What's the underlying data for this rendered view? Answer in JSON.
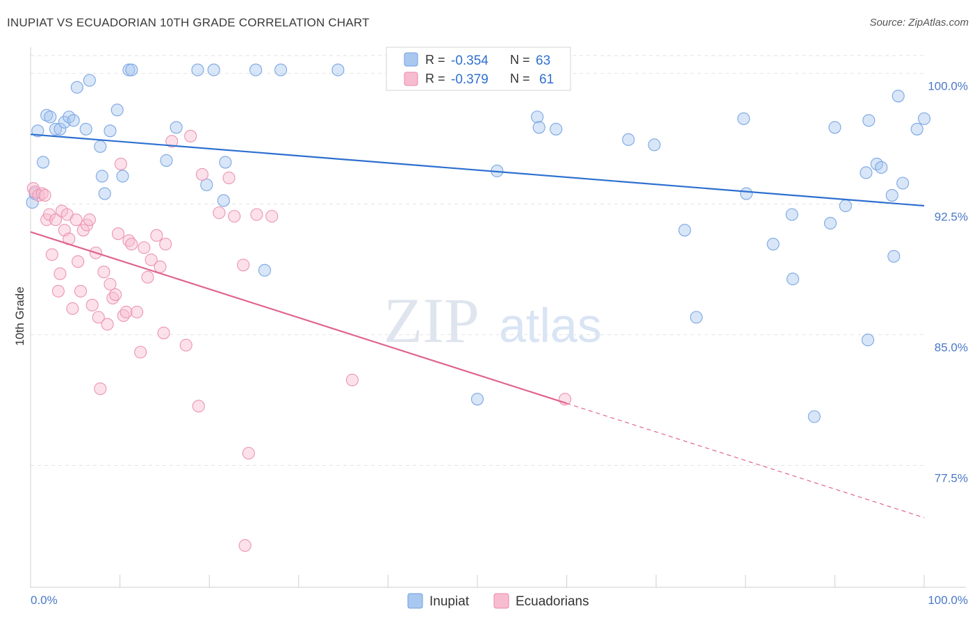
{
  "title": "INUPIAT VS ECUADORIAN 10TH GRADE CORRELATION CHART",
  "source": "Source: ZipAtlas.com",
  "watermark": {
    "part1": "ZIP",
    "part2": "atlas"
  },
  "legend_top": [
    {
      "r_label": "R =",
      "r_value": "-0.354",
      "n_label": "N =",
      "n_value": "63",
      "color": "#a9c8f0",
      "stroke": "#6f9de0"
    },
    {
      "r_label": "R =",
      "r_value": "-0.379",
      "n_label": "N =",
      "n_value": "61",
      "color": "#f8bcd0",
      "stroke": "#e88aa8"
    }
  ],
  "legend_bottom": [
    {
      "label": "Inupiat",
      "color": "#a9c8f0",
      "stroke": "#6f9de0"
    },
    {
      "label": "Ecuadorians",
      "color": "#f8bcd0",
      "stroke": "#e88aa8"
    }
  ],
  "colors": {
    "blue_line": "#2d6fd0",
    "pink_line": "#e0648e",
    "blue_fill": "#a9c8f0",
    "pink_fill": "#f8bcd0",
    "tick_text": "#4a78c8"
  },
  "chart_data": {
    "type": "scatter",
    "ylabel": "10th Grade",
    "xlim": [
      0,
      100
    ],
    "ylim": [
      70.5,
      101.5
    ],
    "x_tick_labels": [
      "0.0%",
      "100.0%"
    ],
    "y_ticks": [
      77.5,
      85.0,
      92.5,
      100.0
    ],
    "y_tick_labels": [
      "77.5%",
      "85.0%",
      "92.5%",
      "100.0%"
    ],
    "grid": true,
    "series": [
      {
        "name": "Inupiat",
        "trend": {
          "x": [
            0,
            100
          ],
          "y": [
            96.5,
            92.4
          ],
          "solid_to": 100
        },
        "points": [
          [
            0.2,
            92.6
          ],
          [
            0.5,
            93.1
          ],
          [
            0.8,
            96.7
          ],
          [
            1.4,
            94.9
          ],
          [
            1.8,
            97.6
          ],
          [
            2.2,
            97.5
          ],
          [
            2.8,
            96.8
          ],
          [
            3.3,
            96.8
          ],
          [
            3.8,
            97.2
          ],
          [
            4.3,
            97.5
          ],
          [
            4.8,
            97.3
          ],
          [
            5.2,
            99.2
          ],
          [
            6.2,
            96.8
          ],
          [
            6.6,
            99.6
          ],
          [
            7.8,
            95.8
          ],
          [
            8.0,
            94.1
          ],
          [
            8.3,
            93.1
          ],
          [
            8.9,
            96.7
          ],
          [
            9.7,
            97.9
          ],
          [
            10.3,
            94.1
          ],
          [
            11.0,
            100.2
          ],
          [
            11.3,
            100.2
          ],
          [
            15.2,
            95.0
          ],
          [
            16.3,
            96.9
          ],
          [
            18.7,
            100.2
          ],
          [
            19.7,
            93.6
          ],
          [
            20.5,
            100.2
          ],
          [
            21.6,
            92.7
          ],
          [
            21.8,
            94.9
          ],
          [
            25.2,
            100.2
          ],
          [
            26.2,
            88.7
          ],
          [
            28.0,
            100.2
          ],
          [
            34.4,
            100.2
          ],
          [
            47.6,
            100.2
          ],
          [
            50.0,
            81.3
          ],
          [
            52.2,
            94.4
          ],
          [
            56.7,
            97.5
          ],
          [
            56.9,
            96.9
          ],
          [
            58.8,
            96.8
          ],
          [
            66.9,
            96.2
          ],
          [
            69.8,
            95.9
          ],
          [
            73.2,
            91.0
          ],
          [
            74.5,
            86.0
          ],
          [
            79.8,
            97.4
          ],
          [
            80.1,
            93.1
          ],
          [
            83.1,
            90.2
          ],
          [
            85.2,
            91.9
          ],
          [
            85.3,
            88.2
          ],
          [
            87.7,
            80.3
          ],
          [
            89.5,
            91.4
          ],
          [
            90.0,
            96.9
          ],
          [
            91.2,
            92.4
          ],
          [
            93.5,
            94.3
          ],
          [
            93.7,
            84.7
          ],
          [
            93.8,
            97.3
          ],
          [
            94.7,
            94.8
          ],
          [
            95.2,
            94.6
          ],
          [
            96.4,
            93.0
          ],
          [
            96.6,
            89.5
          ],
          [
            97.1,
            98.7
          ],
          [
            97.6,
            93.7
          ],
          [
            99.2,
            96.8
          ],
          [
            100.0,
            97.4
          ]
        ]
      },
      {
        "name": "Ecuadorians",
        "trend": {
          "x": [
            0,
            100
          ],
          "y": [
            90.9,
            74.5
          ],
          "solid_to": 60
        },
        "points": [
          [
            0.3,
            93.4
          ],
          [
            0.5,
            93.2
          ],
          [
            0.9,
            93.0
          ],
          [
            1.3,
            93.1
          ],
          [
            1.6,
            93.0
          ],
          [
            1.8,
            91.6
          ],
          [
            2.1,
            91.9
          ],
          [
            2.4,
            89.6
          ],
          [
            2.8,
            91.6
          ],
          [
            3.1,
            87.5
          ],
          [
            3.3,
            88.5
          ],
          [
            3.5,
            92.1
          ],
          [
            3.8,
            91.0
          ],
          [
            4.1,
            91.9
          ],
          [
            4.3,
            90.5
          ],
          [
            4.7,
            86.5
          ],
          [
            5.1,
            91.6
          ],
          [
            5.3,
            89.2
          ],
          [
            5.6,
            87.5
          ],
          [
            5.9,
            91.0
          ],
          [
            6.3,
            91.3
          ],
          [
            6.6,
            91.6
          ],
          [
            6.9,
            86.7
          ],
          [
            7.3,
            89.7
          ],
          [
            7.6,
            86.0
          ],
          [
            7.8,
            81.9
          ],
          [
            8.2,
            88.6
          ],
          [
            8.6,
            85.6
          ],
          [
            8.9,
            87.9
          ],
          [
            9.2,
            87.1
          ],
          [
            9.5,
            87.3
          ],
          [
            9.8,
            90.8
          ],
          [
            10.1,
            94.8
          ],
          [
            10.4,
            86.1
          ],
          [
            10.7,
            86.3
          ],
          [
            11.0,
            90.4
          ],
          [
            11.3,
            90.2
          ],
          [
            11.9,
            86.3
          ],
          [
            12.3,
            84.0
          ],
          [
            12.7,
            90.0
          ],
          [
            13.1,
            88.3
          ],
          [
            13.5,
            89.3
          ],
          [
            14.1,
            90.7
          ],
          [
            14.5,
            88.9
          ],
          [
            14.9,
            85.1
          ],
          [
            15.1,
            90.2
          ],
          [
            15.8,
            96.1
          ],
          [
            17.4,
            84.4
          ],
          [
            17.9,
            96.4
          ],
          [
            18.8,
            80.9
          ],
          [
            19.2,
            94.2
          ],
          [
            21.1,
            92.0
          ],
          [
            22.2,
            94.0
          ],
          [
            22.8,
            91.8
          ],
          [
            23.8,
            89.0
          ],
          [
            24.0,
            72.9
          ],
          [
            24.4,
            78.2
          ],
          [
            25.3,
            91.9
          ],
          [
            27.0,
            91.8
          ],
          [
            36.0,
            82.4
          ],
          [
            59.8,
            81.3
          ]
        ]
      }
    ]
  }
}
